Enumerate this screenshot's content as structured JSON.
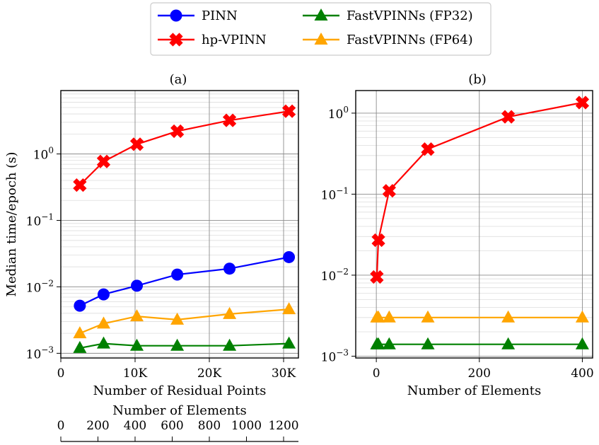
{
  "legend": {
    "placement": "top-center",
    "entries": [
      {
        "label": "PINN",
        "color": "#0000ff",
        "marker": "circle"
      },
      {
        "label": "hp-VPINN",
        "color": "#ff0000",
        "marker": "x"
      },
      {
        "label": "FastVPINNs (FP32)",
        "color": "#008000",
        "marker": "triangle"
      },
      {
        "label": "FastVPINNs (FP64)",
        "color": "#ffa500",
        "marker": "triangle"
      }
    ]
  },
  "chart_data": [
    {
      "type": "line",
      "title": "(a)",
      "xlabel": "Number of Residual Points",
      "ylabel": "Median time/epoch (s)",
      "yscale": "log",
      "xlim": [
        0,
        32000
      ],
      "ylim": [
        0.00085,
        9
      ],
      "grid": true,
      "x_ticks": [
        {
          "value": 0,
          "label": "0"
        },
        {
          "value": 10000,
          "label": "10K"
        },
        {
          "value": 20000,
          "label": "20K"
        },
        {
          "value": 30000,
          "label": "30K"
        }
      ],
      "y_ticks": [
        {
          "value": 0.001,
          "label": "10",
          "exp": "−3"
        },
        {
          "value": 0.01,
          "label": "10",
          "exp": "−2"
        },
        {
          "value": 0.1,
          "label": "10",
          "exp": "−1"
        },
        {
          "value": 1,
          "label": "10",
          "exp": "0"
        }
      ],
      "x": [
        2560,
        5760,
        10240,
        15680,
        22720,
        30720
      ],
      "series": [
        {
          "name": "PINN",
          "values": [
            0.0052,
            0.0077,
            0.0104,
            0.0153,
            0.0188,
            0.028
          ]
        },
        {
          "name": "hp-VPINN",
          "values": [
            0.34,
            0.77,
            1.4,
            2.2,
            3.2,
            4.4
          ]
        },
        {
          "name": "FastVPINNs (FP32)",
          "values": [
            0.0012,
            0.0014,
            0.0013,
            0.0013,
            0.0013,
            0.0014
          ]
        },
        {
          "name": "FastVPINNs (FP64)",
          "values": [
            0.002,
            0.0028,
            0.0036,
            0.0032,
            0.0039,
            0.0046
          ]
        }
      ],
      "secondary_axis": {
        "xlabel": "Number of Elements",
        "xlim": [
          0,
          1280
        ],
        "ticks": [
          {
            "value": 0,
            "label": "0"
          },
          {
            "value": 200,
            "label": "200"
          },
          {
            "value": 400,
            "label": "400"
          },
          {
            "value": 600,
            "label": "600"
          },
          {
            "value": 800,
            "label": "800"
          },
          {
            "value": 1000,
            "label": "1000"
          },
          {
            "value": 1200,
            "label": "1200"
          }
        ]
      }
    },
    {
      "type": "line",
      "title": "(b)",
      "xlabel": "Number of Elements",
      "ylabel": "",
      "yscale": "log",
      "xlim": [
        -40,
        420
      ],
      "ylim": [
        0.00095,
        1.9
      ],
      "grid": true,
      "x_ticks": [
        {
          "value": 0,
          "label": "0"
        },
        {
          "value": 200,
          "label": "200"
        },
        {
          "value": 400,
          "label": "400"
        }
      ],
      "y_ticks": [
        {
          "value": 0.001,
          "label": "10",
          "exp": "−3"
        },
        {
          "value": 0.01,
          "label": "10",
          "exp": "−2"
        },
        {
          "value": 0.1,
          "label": "10",
          "exp": "−1"
        },
        {
          "value": 1,
          "label": "10",
          "exp": "0"
        }
      ],
      "x": [
        1,
        4,
        25,
        100,
        256,
        400
      ],
      "series": [
        {
          "name": "hp-VPINN",
          "values": [
            0.0095,
            0.027,
            0.11,
            0.36,
            0.9,
            1.35
          ]
        },
        {
          "name": "FastVPINNs (FP32)",
          "values": [
            0.0014,
            0.0014,
            0.0014,
            0.0014,
            0.0014,
            0.0014
          ]
        },
        {
          "name": "FastVPINNs (FP64)",
          "values": [
            0.003,
            0.003,
            0.003,
            0.003,
            0.003,
            0.003
          ]
        }
      ]
    }
  ]
}
